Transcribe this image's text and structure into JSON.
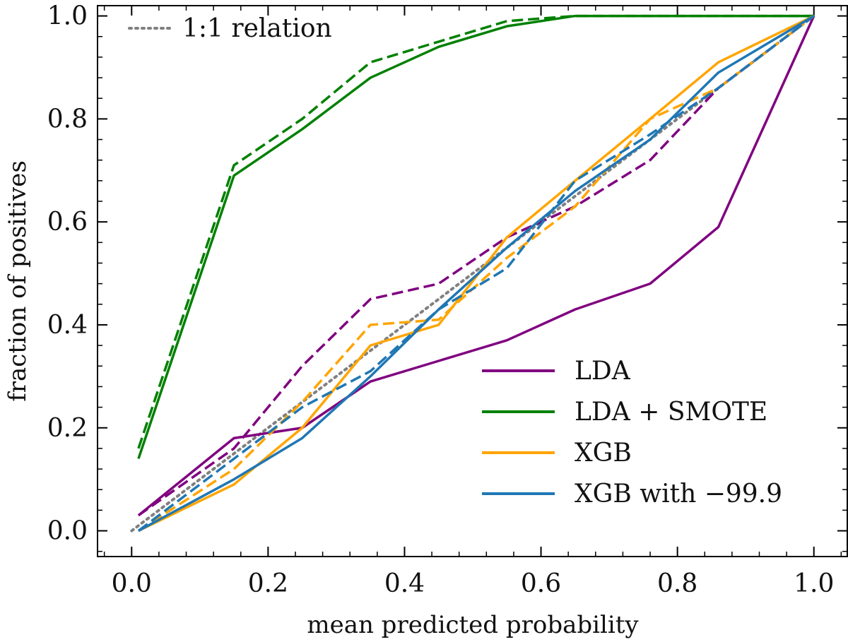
{
  "chart_data": {
    "type": "line",
    "title": "",
    "xlabel": "mean predicted probability",
    "ylabel": "fraction of positives",
    "xlim": [
      -0.05,
      1.05
    ],
    "ylim": [
      -0.05,
      1.02
    ],
    "xticks": [
      0.0,
      0.2,
      0.4,
      0.6,
      0.8,
      1.0
    ],
    "xtick_labels": [
      "0.0",
      "0.2",
      "0.4",
      "0.6",
      "0.8",
      "1.0"
    ],
    "yticks": [
      0.0,
      0.2,
      0.4,
      0.6,
      0.8,
      1.0
    ],
    "ytick_labels": [
      "0.0",
      "0.2",
      "0.4",
      "0.6",
      "0.8",
      "1.0"
    ],
    "reference_line": {
      "name": "1:1 relation",
      "color": "#808080",
      "style": "dotted",
      "x": [
        0.0,
        1.0
      ],
      "y": [
        0.0,
        1.0
      ]
    },
    "series": [
      {
        "name": "LDA",
        "color": "#800080",
        "style": "solid",
        "x": [
          0.01,
          0.15,
          0.25,
          0.35,
          0.45,
          0.55,
          0.65,
          0.76,
          0.86,
          1.0
        ],
        "y": [
          0.03,
          0.18,
          0.2,
          0.29,
          0.33,
          0.37,
          0.43,
          0.48,
          0.59,
          1.0
        ]
      },
      {
        "name": "LDA",
        "color": "#800080",
        "style": "dashed",
        "x": [
          0.01,
          0.15,
          0.25,
          0.35,
          0.45,
          0.55,
          0.65,
          0.76,
          0.86,
          1.0
        ],
        "y": [
          0.03,
          0.16,
          0.32,
          0.45,
          0.48,
          0.57,
          0.63,
          0.72,
          0.86,
          1.0
        ]
      },
      {
        "name": "LDA + SMOTE",
        "color": "#008000",
        "style": "solid",
        "x": [
          0.01,
          0.15,
          0.25,
          0.35,
          0.45,
          0.55,
          0.65,
          0.76,
          0.86,
          1.0
        ],
        "y": [
          0.14,
          0.69,
          0.78,
          0.88,
          0.94,
          0.98,
          1.0,
          1.0,
          1.0,
          1.0
        ]
      },
      {
        "name": "LDA + SMOTE",
        "color": "#008000",
        "style": "dashed",
        "x": [
          0.01,
          0.15,
          0.25,
          0.35,
          0.45,
          0.55,
          0.65,
          0.76,
          0.86,
          1.0
        ],
        "y": [
          0.16,
          0.71,
          0.8,
          0.91,
          0.95,
          0.99,
          1.0,
          1.0,
          1.0,
          1.0
        ]
      },
      {
        "name": "XGB",
        "color": "#FFA500",
        "style": "solid",
        "x": [
          0.01,
          0.15,
          0.25,
          0.35,
          0.45,
          0.55,
          0.65,
          0.76,
          0.86,
          1.0
        ],
        "y": [
          0.0,
          0.09,
          0.2,
          0.36,
          0.4,
          0.57,
          0.68,
          0.8,
          0.91,
          1.0
        ]
      },
      {
        "name": "XGB",
        "color": "#FFA500",
        "style": "dashed",
        "x": [
          0.01,
          0.15,
          0.25,
          0.35,
          0.45,
          0.55,
          0.65,
          0.76,
          0.86,
          1.0
        ],
        "y": [
          0.0,
          0.12,
          0.25,
          0.4,
          0.41,
          0.53,
          0.63,
          0.8,
          0.86,
          1.0
        ]
      },
      {
        "name": "XGB with −99.9",
        "color": "#1F77B4",
        "style": "solid",
        "x": [
          0.01,
          0.15,
          0.25,
          0.35,
          0.45,
          0.55,
          0.65,
          0.76,
          0.86,
          1.0
        ],
        "y": [
          0.0,
          0.1,
          0.18,
          0.3,
          0.43,
          0.55,
          0.66,
          0.76,
          0.89,
          1.0
        ]
      },
      {
        "name": "XGB with −99.9",
        "color": "#1F77B4",
        "style": "dashed",
        "x": [
          0.01,
          0.15,
          0.25,
          0.35,
          0.45,
          0.55,
          0.65,
          0.76,
          0.86,
          1.0
        ],
        "y": [
          0.0,
          0.14,
          0.24,
          0.31,
          0.43,
          0.51,
          0.68,
          0.77,
          0.86,
          1.0
        ]
      }
    ],
    "legend_top_left": [
      {
        "label": "1:1 relation",
        "color": "#808080",
        "style": "dotted"
      }
    ],
    "legend_bottom_right": [
      {
        "label": "LDA",
        "color": "#800080",
        "style": "solid"
      },
      {
        "label": "LDA + SMOTE",
        "color": "#008000",
        "style": "solid"
      },
      {
        "label": "XGB",
        "color": "#FFA500",
        "style": "solid"
      },
      {
        "label": "XGB with −99.9",
        "color": "#1F77B4",
        "style": "solid"
      }
    ]
  }
}
